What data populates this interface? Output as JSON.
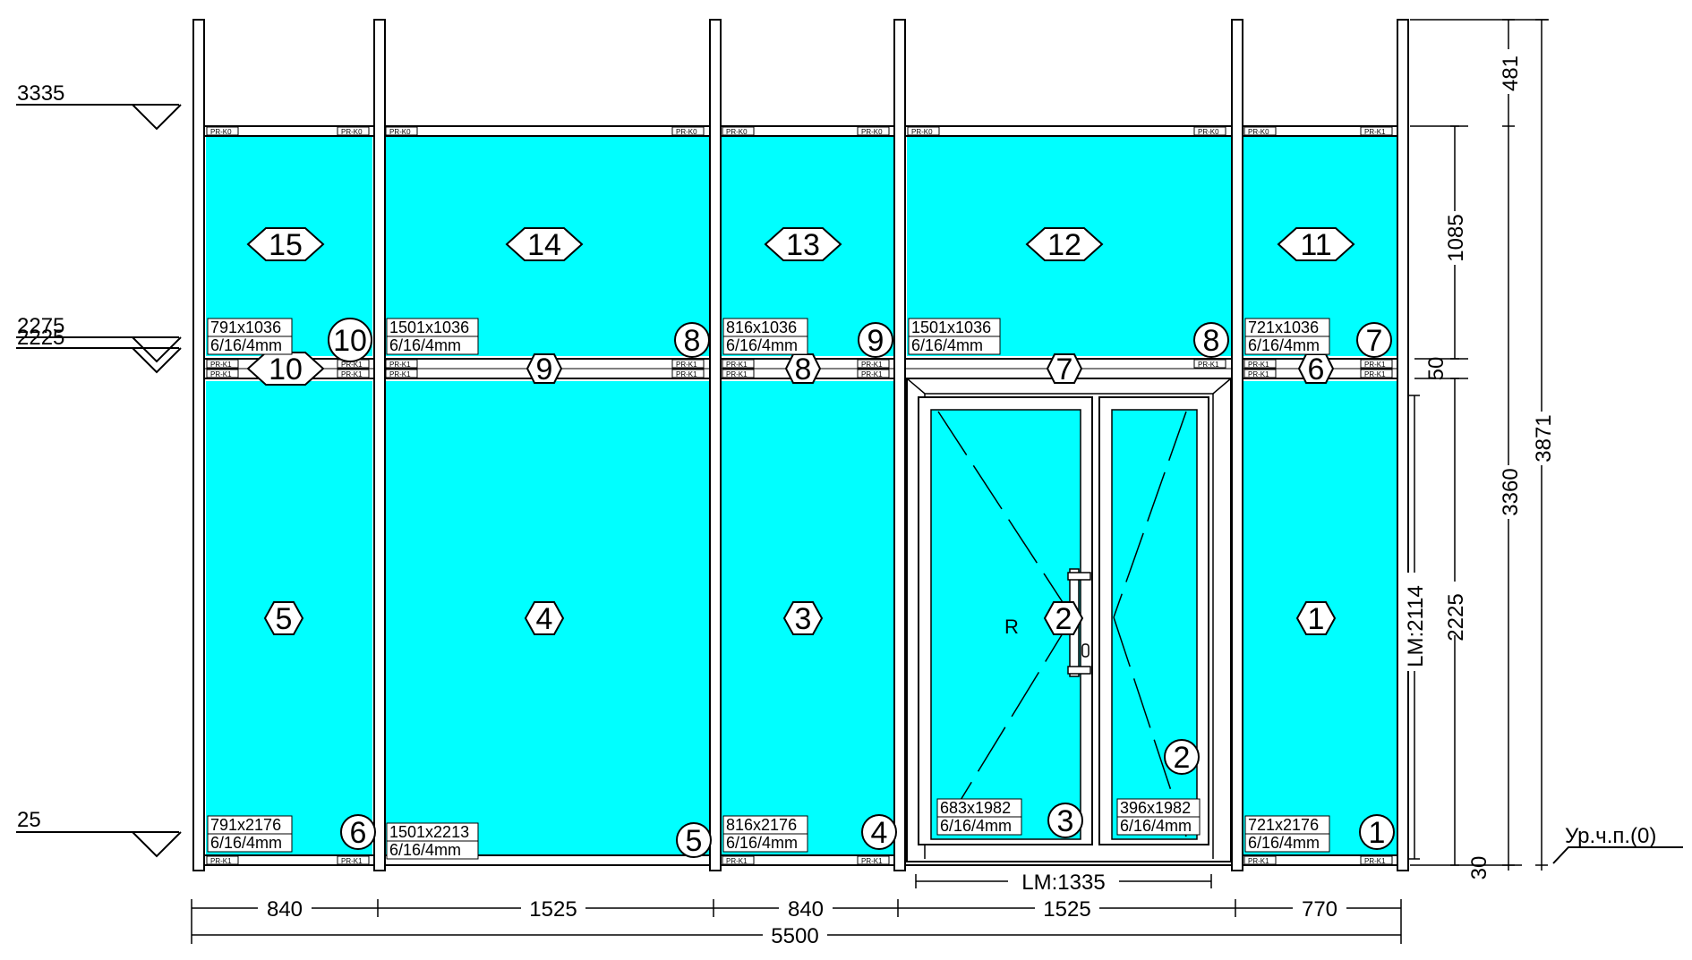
{
  "colors": {
    "glass": "#00ffff",
    "frame": "#ffffff",
    "line": "#000000",
    "background": "#ffffff"
  },
  "levels": [
    {
      "label": "3335",
      "key": "l3335"
    },
    {
      "label": "2275",
      "key": "l2275"
    },
    {
      "label": "2225",
      "key": "l2225"
    },
    {
      "label": "25",
      "key": "l25"
    }
  ],
  "floor_label": "Ур.ч.п.(0)",
  "upper_lights": [
    {
      "number": "15",
      "key": "c0"
    },
    {
      "number": "14",
      "key": "c1"
    },
    {
      "number": "13",
      "key": "c2"
    },
    {
      "number": "12",
      "key": "c3"
    },
    {
      "number": "11",
      "key": "c4"
    }
  ],
  "lower_lights": [
    {
      "number": "5",
      "key": "c0"
    },
    {
      "number": "4",
      "key": "c1"
    },
    {
      "number": "3",
      "key": "c2"
    },
    {
      "number": "2",
      "key": "door"
    },
    {
      "number": "1",
      "key": "c4"
    }
  ],
  "transoms": [
    {
      "number": "10",
      "key": "c0"
    },
    {
      "number": "9",
      "key": "c1"
    },
    {
      "number": "8",
      "key": "c2"
    },
    {
      "number": "7",
      "key": "c3"
    },
    {
      "number": "6",
      "key": "c4"
    }
  ],
  "glass_labels": [
    {
      "key": "u0",
      "size": "791x1036",
      "spec": "6/16/4mm"
    },
    {
      "key": "u1",
      "size": "1501x1036",
      "spec": "6/16/4mm"
    },
    {
      "key": "u2",
      "size": "816x1036",
      "spec": "6/16/4mm"
    },
    {
      "key": "u3",
      "size": "1501x1036",
      "spec": "6/16/4mm"
    },
    {
      "key": "u4",
      "size": "721x1036",
      "spec": "6/16/4mm"
    },
    {
      "key": "b0",
      "size": "791x2176",
      "spec": "6/16/4mm"
    },
    {
      "key": "b1",
      "size": "1501x2213",
      "spec": "6/16/4mm"
    },
    {
      "key": "b2",
      "size": "816x2176",
      "spec": "6/16/4mm"
    },
    {
      "key": "b4",
      "size": "721x2176",
      "spec": "6/16/4mm"
    },
    {
      "key": "dl",
      "size": "683x1982",
      "spec": "6/16/4mm"
    },
    {
      "key": "dr",
      "size": "396x1982",
      "spec": "6/16/4mm"
    }
  ],
  "circle_markers": [
    {
      "key": "m10",
      "number": "10"
    },
    {
      "key": "m8a",
      "number": "8"
    },
    {
      "key": "m9",
      "number": "9"
    },
    {
      "key": "m8b",
      "number": "8"
    },
    {
      "key": "m7",
      "number": "7"
    },
    {
      "key": "m6",
      "number": "6"
    },
    {
      "key": "m5",
      "number": "5"
    },
    {
      "key": "m4",
      "number": "4"
    },
    {
      "key": "m3",
      "number": "3"
    },
    {
      "key": "m2",
      "number": "2"
    },
    {
      "key": "m1",
      "number": "1"
    }
  ],
  "door": {
    "opening_side": "R"
  },
  "profile_codes": {
    "top": "PR-K0",
    "top_right": "PR-K1",
    "middle": "PR-K1",
    "bottom": "PR-K1"
  },
  "bottom_dimensions": {
    "segments": [
      "840",
      "1525",
      "840",
      "1525",
      "770"
    ],
    "total": "5500",
    "door_lm": "LM:1335"
  },
  "right_dimensions": {
    "top_gap": "481",
    "upper_height": "1085",
    "transom": "50",
    "lower_height": "2225",
    "sill": "30",
    "door_lm": "LM:2114",
    "frame_height": "3360",
    "total_height": "3871"
  }
}
